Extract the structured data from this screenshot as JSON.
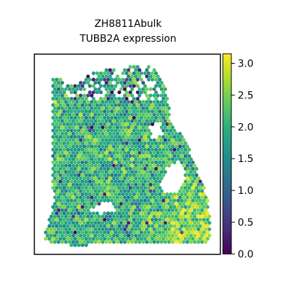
{
  "chart_data": {
    "type": "scatter",
    "title": "ZH8811Abulk",
    "subtitle": "TUBB2A expression",
    "xlabel": "",
    "ylabel": "",
    "grid": false,
    "colormap": "viridis",
    "colorbar": {
      "range": [
        0.0,
        3.15
      ],
      "ticks": [
        0.0,
        0.5,
        1.0,
        1.5,
        2.0,
        2.5,
        3.0
      ],
      "tick_labels": [
        "0.0",
        "0.5",
        "1.0",
        "1.5",
        "2.0",
        "2.5",
        "3.0"
      ]
    },
    "typical_value": 2.0,
    "colors": {
      "frame": "#000000",
      "background": "#ffffff"
    }
  }
}
